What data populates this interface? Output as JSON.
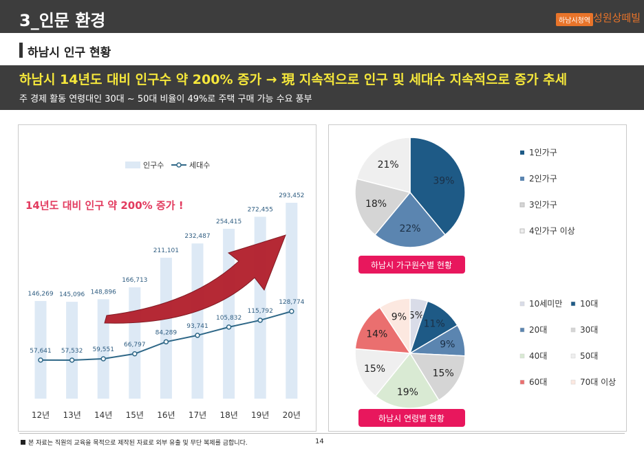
{
  "header": {
    "title": "3_인문 환경",
    "badge": "하남시청역",
    "brand": "성원상떼빌"
  },
  "section": {
    "title": "하남시 인구 현황"
  },
  "banner": {
    "headline": "하남시 14년도 대비 인구수 약 200% 증가 → 現 지속적으로 인구  및 세대수 지속적으로 증가 추세",
    "sub": "주 경제 활동 연령대인 30대 ~ 50대 비율이 49%로 주택 구매 가능 수요 풍부"
  },
  "population_chart": {
    "annotation": "14년도 대비 인구 약 200% 증가 !",
    "legend": {
      "population": "인구수",
      "households": "세대수"
    }
  },
  "household_pie": {
    "caption": "하남시 가구원수별 현황"
  },
  "age_pie": {
    "caption": "하남시 연령별 현황"
  },
  "footer": {
    "note": "본 자료는 직원의 교육을 목적으로 제작된 자료로 외부 유출 및 무단 복제를 금합니다.",
    "page": "14"
  },
  "chart_data": [
    {
      "type": "bar",
      "categories": [
        "12년",
        "13년",
        "14년",
        "15년",
        "16년",
        "17년",
        "18년",
        "19년",
        "20년"
      ],
      "series": [
        {
          "name": "인구수",
          "kind": "bar",
          "color": "#dde9f5",
          "values": [
            146269,
            145096,
            148896,
            166713,
            211101,
            232487,
            254415,
            272455,
            293452
          ],
          "labels": [
            "146,269",
            "145,096",
            "148,896",
            "166,713",
            "211,101",
            "232,487",
            "254,415",
            "272,455",
            "293,452"
          ]
        },
        {
          "name": "세대수",
          "kind": "line",
          "color": "#2e6787",
          "values": [
            57641,
            57532,
            59551,
            66797,
            84289,
            93741,
            105832,
            115792,
            128774
          ],
          "labels": [
            "57,641",
            "57,532",
            "59,551",
            "66,797",
            "84,289",
            "93,741",
            "105,832",
            "115,792",
            "128,774"
          ]
        }
      ]
    },
    {
      "type": "pie",
      "categories": [
        "1인가구",
        "2인가구",
        "3인가구",
        "4인가구 이상"
      ],
      "values": [
        39,
        22,
        18,
        21
      ],
      "labels": [
        "39%",
        "22%",
        "18%",
        "21%"
      ],
      "colors": [
        "#1e5a86",
        "#5b85b0",
        "#d5d5d5",
        "#efefef"
      ]
    },
    {
      "type": "pie",
      "categories": [
        "10세미만",
        "10대",
        "20대",
        "30대",
        "40대",
        "50대",
        "60대",
        "70대 이상"
      ],
      "values": [
        5,
        11,
        9,
        15,
        19,
        15,
        14,
        9
      ],
      "labels": [
        "5%",
        "11%",
        "9%",
        "15%",
        "19%",
        "15%",
        "14%",
        "9%"
      ],
      "colors": [
        "#d9dce8",
        "#1e5a86",
        "#5b85b0",
        "#d5d5d5",
        "#d9ead3",
        "#efefef",
        "#ea6f6f",
        "#fce8e0"
      ]
    }
  ]
}
